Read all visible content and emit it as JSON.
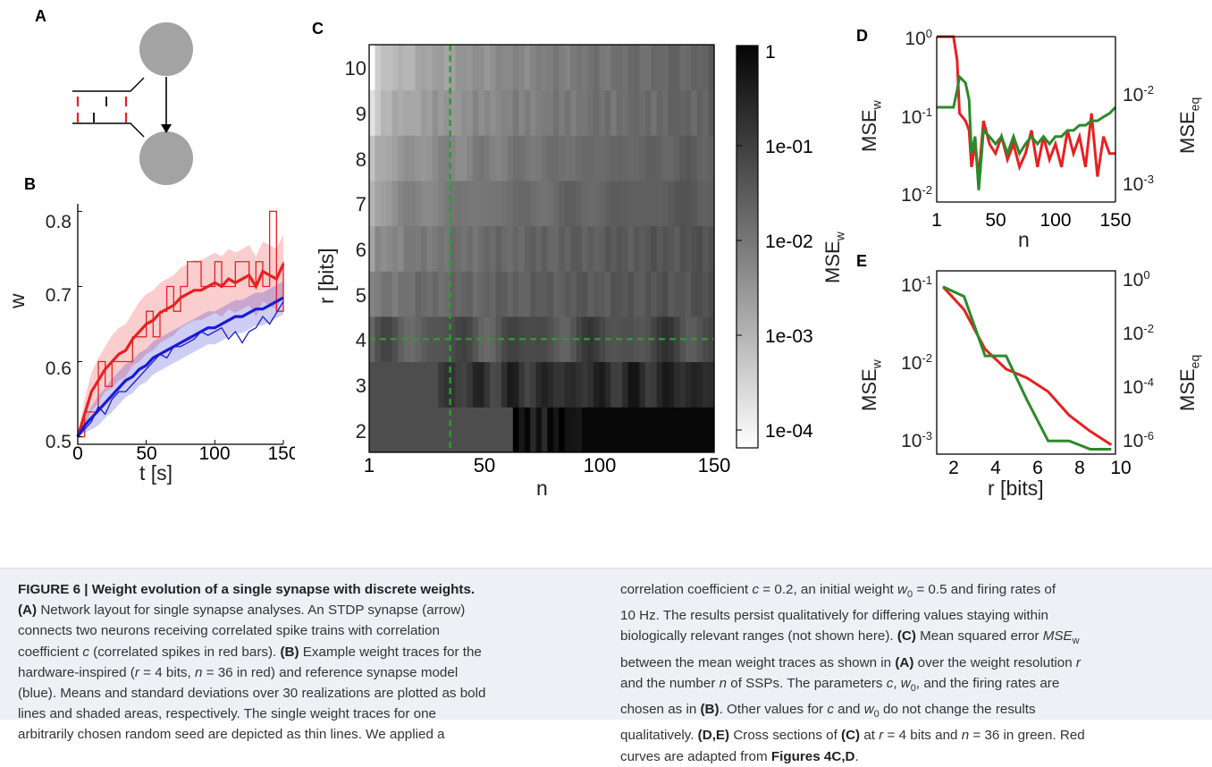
{
  "figure": {
    "panel_labels": {
      "A": "A",
      "B": "B",
      "C": "C",
      "D": "D",
      "E": "E"
    }
  },
  "chart_data": [
    {
      "panel": "B",
      "type": "line",
      "xlabel": "t [s]",
      "ylabel": "w",
      "xlim": [
        0,
        150
      ],
      "ylim": [
        0.49,
        0.81
      ],
      "xticks": [
        "0",
        "50",
        "100",
        "150"
      ],
      "yticks": [
        "0.5",
        "0.6",
        "0.7",
        "0.8"
      ],
      "series": [
        {
          "color": "#e82020",
          "x": [
            0,
            5,
            10,
            15,
            20,
            25,
            30,
            35,
            40,
            45,
            50,
            55,
            60,
            65,
            70,
            75,
            80,
            85,
            90,
            95,
            100,
            105,
            110,
            115,
            120,
            125,
            130,
            135,
            140,
            145,
            150
          ],
          "mean": [
            0.5,
            0.53,
            0.56,
            0.575,
            0.59,
            0.6,
            0.61,
            0.615,
            0.63,
            0.64,
            0.65,
            0.655,
            0.665,
            0.67,
            0.675,
            0.685,
            0.69,
            0.695,
            0.695,
            0.7,
            0.705,
            0.7,
            0.71,
            0.705,
            0.71,
            0.715,
            0.7,
            0.72,
            0.715,
            0.71,
            0.73
          ],
          "sd": [
            0.0,
            0.02,
            0.025,
            0.03,
            0.03,
            0.035,
            0.035,
            0.035,
            0.035,
            0.04,
            0.04,
            0.04,
            0.04,
            0.04,
            0.04,
            0.04,
            0.04,
            0.04,
            0.04,
            0.04,
            0.04,
            0.04,
            0.04,
            0.04,
            0.04,
            0.04,
            0.04,
            0.04,
            0.04,
            0.04,
            0.04
          ],
          "single": [
            0.5,
            0.533,
            0.533,
            0.6,
            0.567,
            0.6,
            0.6,
            0.6,
            0.633,
            0.633,
            0.667,
            0.633,
            0.667,
            0.7,
            0.667,
            0.7,
            0.733,
            0.733,
            0.7,
            0.7,
            0.733,
            0.7,
            0.7,
            0.733,
            0.733,
            0.7,
            0.733,
            0.7,
            0.8,
            0.667,
            0.733
          ]
        },
        {
          "color": "#1a1ad0",
          "x": [
            0,
            5,
            10,
            15,
            20,
            25,
            30,
            35,
            40,
            45,
            50,
            55,
            60,
            65,
            70,
            75,
            80,
            85,
            90,
            95,
            100,
            105,
            110,
            115,
            120,
            125,
            130,
            135,
            140,
            145,
            150
          ],
          "mean": [
            0.5,
            0.515,
            0.525,
            0.535,
            0.545,
            0.555,
            0.565,
            0.575,
            0.58,
            0.59,
            0.595,
            0.605,
            0.61,
            0.615,
            0.62,
            0.625,
            0.63,
            0.635,
            0.64,
            0.645,
            0.645,
            0.65,
            0.655,
            0.66,
            0.66,
            0.665,
            0.67,
            0.67,
            0.675,
            0.68,
            0.685
          ],
          "sd": [
            0.0,
            0.01,
            0.015,
            0.02,
            0.02,
            0.022,
            0.022,
            0.022,
            0.022,
            0.022,
            0.022,
            0.022,
            0.022,
            0.022,
            0.022,
            0.022,
            0.022,
            0.022,
            0.022,
            0.022,
            0.022,
            0.022,
            0.022,
            0.022,
            0.022,
            0.022,
            0.022,
            0.022,
            0.022,
            0.022,
            0.022
          ],
          "single": [
            0.5,
            0.51,
            0.52,
            0.54,
            0.53,
            0.55,
            0.56,
            0.56,
            0.57,
            0.58,
            0.59,
            0.6,
            0.61,
            0.605,
            0.62,
            0.62,
            0.625,
            0.63,
            0.64,
            0.635,
            0.64,
            0.645,
            0.63,
            0.64,
            0.625,
            0.64,
            0.645,
            0.66,
            0.65,
            0.665,
            0.68
          ]
        }
      ]
    },
    {
      "panel": "C",
      "type": "heatmap",
      "xlabel": "n",
      "ylabel": "r [bits]",
      "xticks": [
        "1",
        "50",
        "100",
        "150"
      ],
      "yticks": [
        "2",
        "3",
        "4",
        "5",
        "6",
        "7",
        "8",
        "9",
        "10"
      ],
      "xlim": [
        1,
        150
      ],
      "ylim": [
        1.5,
        10.5
      ],
      "rows_r": [
        2,
        3,
        4,
        5,
        6,
        7,
        8,
        9,
        10
      ],
      "colorbar": {
        "label": "MSE",
        "label_sub": "w",
        "ticks": [
          "1",
          "1e-01",
          "1e-02",
          "1e-03",
          "1e-04"
        ]
      },
      "row_profiles": {
        "r10": {
          "start": 0.05,
          "end": 0.62
        },
        "r9": {
          "start": 0.12,
          "end": 0.62
        },
        "r8": {
          "start": 0.22,
          "end": 0.64
        },
        "r7": {
          "start": 0.3,
          "end": 0.66
        },
        "r6": {
          "start": 0.36,
          "end": 0.68
        },
        "r5": {
          "start": 0.46,
          "end": 0.68
        },
        "r4": {
          "start": 0.6,
          "end": 0.72
        },
        "r3": {
          "start": 0.68,
          "end": 0.85
        },
        "r2": {
          "start": 0.7,
          "end": 0.98
        }
      },
      "guides": {
        "n": 36,
        "r": 4,
        "color": "#2e9a2e"
      }
    },
    {
      "panel": "D",
      "type": "line",
      "xlabel": "n",
      "ylabel": "MSE",
      "ylabel_sub": "w",
      "ylabel_right": "MSE",
      "ylabel_right_sub": "eq",
      "xticks": [
        "1",
        "50",
        "100",
        "150"
      ],
      "yticks": [
        "10",
        "10",
        "10"
      ],
      "ytick_exp": [
        "0",
        "-1",
        "-2"
      ],
      "yticks_right": [
        "10",
        "10"
      ],
      "ytick_right_exp": [
        "-2",
        "-3"
      ],
      "series": [
        {
          "color": "#e82020",
          "x": [
            1,
            5,
            10,
            15,
            18,
            20,
            25,
            28,
            30,
            33,
            36,
            40,
            45,
            50,
            55,
            60,
            65,
            70,
            75,
            80,
            85,
            90,
            95,
            100,
            105,
            110,
            115,
            120,
            125,
            130,
            135,
            140,
            145,
            150
          ],
          "y": [
            1.0,
            1.0,
            1.0,
            1.0,
            0.5,
            0.1,
            0.08,
            0.06,
            0.02,
            0.04,
            0.015,
            0.08,
            0.04,
            0.03,
            0.05,
            0.025,
            0.04,
            0.02,
            0.03,
            0.06,
            0.02,
            0.05,
            0.025,
            0.04,
            0.02,
            0.06,
            0.03,
            0.05,
            0.02,
            0.1,
            0.015,
            0.05,
            0.03,
            0.03
          ]
        },
        {
          "color": "#2a8a2a",
          "x": [
            1,
            5,
            10,
            15,
            18,
            20,
            25,
            28,
            30,
            33,
            36,
            40,
            45,
            50,
            55,
            60,
            65,
            70,
            75,
            80,
            85,
            90,
            95,
            100,
            105,
            110,
            115,
            120,
            125,
            130,
            135,
            140,
            145,
            150
          ],
          "y": [
            0.12,
            0.12,
            0.12,
            0.12,
            0.2,
            0.3,
            0.25,
            0.15,
            0.03,
            0.05,
            0.01,
            0.06,
            0.05,
            0.04,
            0.05,
            0.03,
            0.05,
            0.03,
            0.04,
            0.05,
            0.04,
            0.05,
            0.04,
            0.05,
            0.05,
            0.06,
            0.06,
            0.07,
            0.07,
            0.08,
            0.08,
            0.09,
            0.1,
            0.12
          ]
        }
      ]
    },
    {
      "panel": "E",
      "type": "line",
      "xlabel": "r [bits]",
      "ylabel": "MSE",
      "ylabel_sub": "w",
      "ylabel_right": "MSE",
      "ylabel_right_sub": "eq",
      "xticks": [
        "2",
        "4",
        "6",
        "8",
        "10"
      ],
      "xlim": [
        1.7,
        10.2
      ],
      "yticks": [
        "10",
        "10",
        "10"
      ],
      "ytick_exp": [
        "-1",
        "-2",
        "-3"
      ],
      "yticks_right": [
        "10",
        "10",
        "10",
        "10"
      ],
      "ytick_right_exp": [
        "0",
        "-2",
        "-4",
        "-6"
      ],
      "series": [
        {
          "color": "#e82020",
          "x": [
            2,
            3,
            4,
            5,
            6,
            7,
            8,
            9,
            10
          ],
          "y": [
            0.065,
            0.035,
            0.012,
            0.007,
            0.0055,
            0.0038,
            0.002,
            0.0013,
            0.0009
          ]
        },
        {
          "color": "#2a8a2a",
          "x": [
            2,
            3,
            4,
            5,
            6,
            7,
            8,
            9,
            10
          ],
          "y": [
            0.065,
            0.05,
            0.01,
            0.01,
            0.003,
            0.001,
            0.001,
            0.0008,
            0.0008
          ]
        }
      ]
    }
  ],
  "caption": {
    "title": "FIGURE 6 | Weight evolution of a single synapse with discrete weights.",
    "left_lines": [
      [
        [
          "b",
          "(A)"
        ],
        [
          "t",
          " Network layout for single synapse analyses. An STDP synapse (arrow)"
        ]
      ],
      [
        [
          "t",
          "connects two neurons receiving correlated spike trains with correlation"
        ]
      ],
      [
        [
          "t",
          "coefficient "
        ],
        [
          "i",
          "c"
        ],
        [
          "t",
          " (correlated spikes in red bars). "
        ],
        [
          "b",
          "(B)"
        ],
        [
          "t",
          " Example weight traces for the"
        ]
      ],
      [
        [
          "t",
          "hardware-inspired ("
        ],
        [
          "i",
          "r"
        ],
        [
          "t",
          " = 4 bits, "
        ],
        [
          "i",
          "n"
        ],
        [
          "t",
          " = 36 in red) and reference synapse model"
        ]
      ],
      [
        [
          "t",
          "(blue). Means and standard deviations over 30 realizations are plotted as bold"
        ]
      ],
      [
        [
          "t",
          "lines and shaded areas, respectively. The single weight traces for one"
        ]
      ],
      [
        [
          "t",
          "arbitrarily chosen random seed are depicted as thin lines. We applied a"
        ]
      ]
    ],
    "right_lines": [
      [
        [
          "t",
          "correlation coefficient "
        ],
        [
          "i",
          "c"
        ],
        [
          "t",
          " = 0.2, an initial weight "
        ],
        [
          "i",
          "w"
        ],
        [
          "sub",
          "0"
        ],
        [
          "t",
          " = 0.5 and firing rates of"
        ]
      ],
      [
        [
          "t",
          "10 Hz. The results persist qualitatively for differing values staying within"
        ]
      ],
      [
        [
          "t",
          "biologically relevant ranges (not shown here). "
        ],
        [
          "b",
          "(C)"
        ],
        [
          "t",
          " Mean squared error "
        ],
        [
          "i",
          "MSE"
        ],
        [
          "sub",
          "w"
        ]
      ],
      [
        [
          "t",
          "between the mean weight traces as shown in "
        ],
        [
          "b",
          "(A)"
        ],
        [
          "t",
          " over the weight resolution "
        ],
        [
          "i",
          "r"
        ]
      ],
      [
        [
          "t",
          "and the number "
        ],
        [
          "i",
          "n"
        ],
        [
          "t",
          " of SSPs. The parameters "
        ],
        [
          "i",
          "c"
        ],
        [
          "t",
          ", "
        ],
        [
          "i",
          "w"
        ],
        [
          "sub",
          "0"
        ],
        [
          "t",
          ", and the firing rates are"
        ]
      ],
      [
        [
          "t",
          "chosen as in "
        ],
        [
          "b",
          "(B)"
        ],
        [
          "t",
          ". Other values for "
        ],
        [
          "i",
          "c"
        ],
        [
          "t",
          " and "
        ],
        [
          "i",
          "w"
        ],
        [
          "sub",
          "0"
        ],
        [
          "t",
          " do not change the results"
        ]
      ],
      [
        [
          "t",
          "qualitatively. "
        ],
        [
          "b",
          "(D,E)"
        ],
        [
          "t",
          " Cross sections of "
        ],
        [
          "b",
          "(C)"
        ],
        [
          "t",
          " at "
        ],
        [
          "i",
          "r"
        ],
        [
          "t",
          " = 4 bits and "
        ],
        [
          "i",
          "n"
        ],
        [
          "t",
          " = 36 in green. Red"
        ]
      ],
      [
        [
          "t",
          "curves are adapted from "
        ],
        [
          "b",
          "Figures 4C,D"
        ],
        [
          "t",
          "."
        ]
      ]
    ]
  }
}
